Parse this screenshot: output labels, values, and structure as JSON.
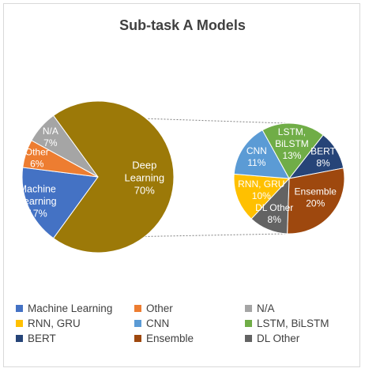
{
  "chart_data": {
    "type": "bar-of-pie",
    "title": "Sub-task A Models",
    "main_pie": {
      "slices": [
        {
          "name": "Deep Learning",
          "label_lines": [
            "Deep",
            "Learning"
          ],
          "value": 70,
          "value_label": "70%",
          "color": "#9C7908"
        },
        {
          "name": "Machine Learning",
          "label_lines": [
            "Machine",
            "Learning"
          ],
          "value": 17,
          "value_label": "17%",
          "color": "#4472C4"
        },
        {
          "name": "Other",
          "label_lines": [
            "Other"
          ],
          "value": 6,
          "value_label": "6%",
          "color": "#ED7D31"
        },
        {
          "name": "N/A",
          "label_lines": [
            "N/A"
          ],
          "value": 7,
          "value_label": "7%",
          "color": "#A5A5A5"
        }
      ]
    },
    "secondary_pie": {
      "slices": [
        {
          "name": "BERT",
          "label_lines": [
            "BERT"
          ],
          "value": 8,
          "value_label": "8%",
          "color": "#264478"
        },
        {
          "name": "Ensemble",
          "label_lines": [
            "Ensemble"
          ],
          "value": 20,
          "value_label": "20%",
          "color": "#9E480E"
        },
        {
          "name": "DL Other",
          "label_lines": [
            "DL Other"
          ],
          "value": 8,
          "value_label": "8%",
          "color": "#636363"
        },
        {
          "name": "RNN, GRU",
          "label_lines": [
            "RNN, GRU"
          ],
          "value": 10,
          "value_label": "10%",
          "color": "#FFC000"
        },
        {
          "name": "CNN",
          "label_lines": [
            "CNN"
          ],
          "value": 11,
          "value_label": "11%",
          "color": "#5B9BD5"
        },
        {
          "name": "LSTM, BiLSTM",
          "label_lines": [
            "LSTM,",
            "BiLSTM"
          ],
          "value": 13,
          "value_label": "13%",
          "color": "#70AD47"
        }
      ]
    },
    "legend": {
      "placement": "bottom",
      "items": [
        {
          "label": "Machine Learning",
          "color": "#4472C4"
        },
        {
          "label": "Other",
          "color": "#ED7D31"
        },
        {
          "label": "N/A",
          "color": "#A5A5A5"
        },
        {
          "label": "RNN, GRU",
          "color": "#FFC000"
        },
        {
          "label": "CNN",
          "color": "#5B9BD5"
        },
        {
          "label": "LSTM, BiLSTM",
          "color": "#70AD47"
        },
        {
          "label": "BERT",
          "color": "#264478"
        },
        {
          "label": "Ensemble",
          "color": "#9E480E"
        },
        {
          "label": "DL Other",
          "color": "#636363"
        }
      ]
    }
  }
}
